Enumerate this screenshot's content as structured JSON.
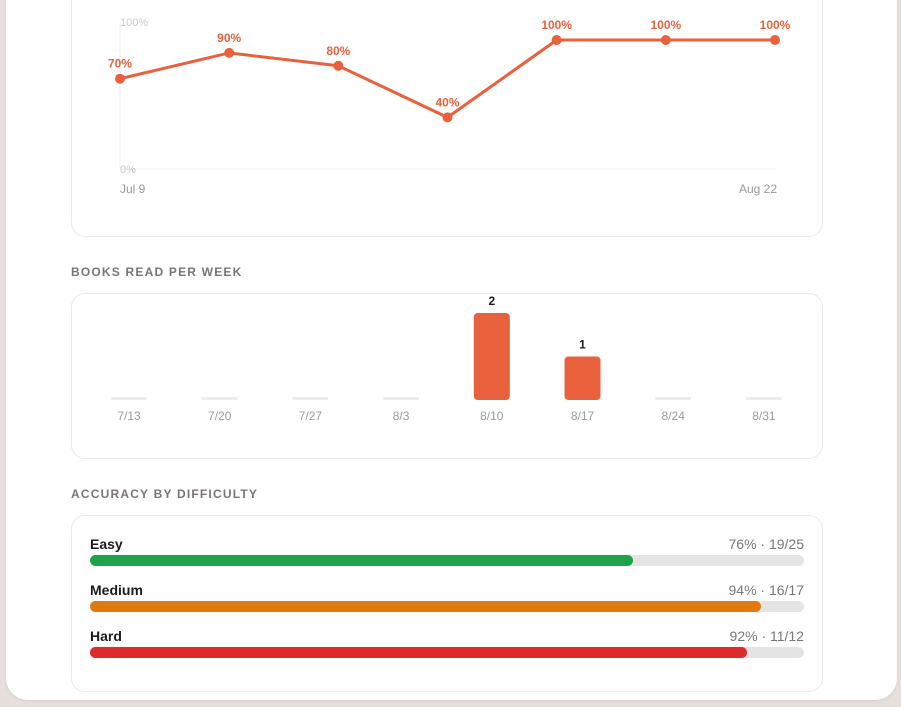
{
  "accent": "#e8603c",
  "line_chart": {
    "chart_data": {
      "type": "line",
      "x_start_label": "Jul 9",
      "x_end_label": "Aug 22",
      "y_max_label": "100%",
      "y_min_label": "0%",
      "ylim": [
        0,
        100
      ],
      "values": [
        70,
        90,
        80,
        40,
        100,
        100,
        100
      ],
      "value_labels": [
        "70%",
        "90%",
        "80%",
        "40%",
        "100%",
        "100%",
        "100%"
      ],
      "color": "#e8603c"
    }
  },
  "books_per_week": {
    "title": "BOOKS READ PER WEEK",
    "chart_data": {
      "type": "bar",
      "categories": [
        "7/13",
        "7/20",
        "7/27",
        "8/3",
        "8/10",
        "8/17",
        "8/24",
        "8/31"
      ],
      "values": [
        0,
        0,
        0,
        0,
        2,
        1,
        0,
        0
      ],
      "color": "#e8603c",
      "empty_color": "#ececec"
    }
  },
  "accuracy": {
    "title": "ACCURACY BY DIFFICULTY",
    "items": [
      {
        "name": "Easy",
        "stats": "76% · 19/25",
        "fraction": 0.76,
        "color": "#1ea24c"
      },
      {
        "name": "Medium",
        "stats": "94% · 16/17",
        "fraction": 0.94,
        "color": "#df7a10"
      },
      {
        "name": "Hard",
        "stats": "92% · 11/12",
        "fraction": 0.92,
        "color": "#dd2a2a"
      }
    ]
  }
}
